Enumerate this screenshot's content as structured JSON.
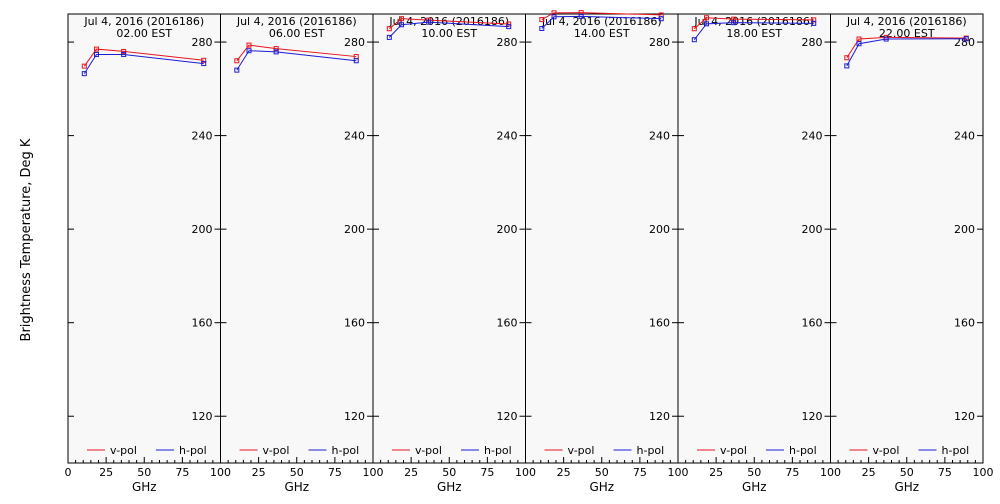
{
  "figure": {
    "ylabel": "Brightness Temperature, Deg K",
    "xlabel": "GHz",
    "legend": {
      "v_label": "v-pol",
      "h_label": "h-pol"
    },
    "colors": {
      "v": "#e8141e",
      "h": "#1c1cd8",
      "background": "#f8f8f8",
      "axes": "#000000"
    }
  },
  "chart_data": [
    {
      "type": "line",
      "title": "Jul  4, 2016 (2016186)",
      "subtitle": "02.00 EST",
      "x": [
        10.7,
        18.7,
        36.5,
        89.0
      ],
      "ylim": [
        100,
        292
      ],
      "xlim": [
        0,
        100
      ],
      "xticks": [
        0,
        25,
        50,
        75,
        100
      ],
      "yticks": [
        120,
        160,
        200,
        240,
        280
      ],
      "series": [
        {
          "name": "v-pol",
          "values": [
            269.7,
            277.0,
            276.0,
            272.2
          ]
        },
        {
          "name": "h-pol",
          "values": [
            266.5,
            274.7,
            274.7,
            270.8
          ]
        }
      ],
      "legend_position": "bottom"
    },
    {
      "type": "line",
      "title": "Jul  4, 2016 (2016186)",
      "subtitle": "06.00 EST",
      "x": [
        10.7,
        18.7,
        36.5,
        89.0
      ],
      "ylim": [
        100,
        292
      ],
      "xlim": [
        0,
        100
      ],
      "xticks": [
        0,
        25,
        50,
        75,
        100
      ],
      "yticks": [
        120,
        160,
        200,
        240,
        280
      ],
      "series": [
        {
          "name": "v-pol",
          "values": [
            272.0,
            278.7,
            277.2,
            273.8
          ]
        },
        {
          "name": "h-pol",
          "values": [
            268.0,
            276.3,
            275.8,
            272.0
          ]
        }
      ],
      "legend_position": "bottom"
    },
    {
      "type": "line",
      "title": "Jul  4, 2016 (2016186)",
      "subtitle": "10.00 EST",
      "x": [
        10.7,
        18.7,
        36.5,
        89.0
      ],
      "ylim": [
        100,
        292
      ],
      "xlim": [
        0,
        100
      ],
      "xticks": [
        0,
        25,
        50,
        75,
        100
      ],
      "yticks": [
        120,
        160,
        200,
        240,
        280
      ],
      "series": [
        {
          "name": "v-pol",
          "values": [
            285.7,
            290.0,
            289.4,
            287.7
          ]
        },
        {
          "name": "h-pol",
          "values": [
            282.0,
            287.4,
            288.5,
            286.6
          ]
        }
      ],
      "legend_position": "bottom"
    },
    {
      "type": "line",
      "title": "Jul  4, 2016 (2016186)",
      "subtitle": "14.00 EST",
      "x": [
        10.7,
        18.7,
        36.5,
        89.0
      ],
      "ylim": [
        100,
        292
      ],
      "xlim": [
        0,
        100
      ],
      "xticks": [
        0,
        25,
        50,
        75,
        100
      ],
      "yticks": [
        120,
        160,
        200,
        240,
        280
      ],
      "series": [
        {
          "name": "v-pol",
          "values": [
            289.6,
            292.5,
            292.6,
            291.6
          ]
        },
        {
          "name": "h-pol",
          "values": [
            285.8,
            290.8,
            291.0,
            290.0
          ]
        }
      ],
      "legend_position": "bottom"
    },
    {
      "type": "line",
      "title": "Jul  4, 2016 (2016186)",
      "subtitle": "18.00 EST",
      "x": [
        10.7,
        18.7,
        36.5,
        89.0
      ],
      "ylim": [
        100,
        292
      ],
      "xlim": [
        0,
        100
      ],
      "xticks": [
        0,
        25,
        50,
        75,
        100
      ],
      "yticks": [
        120,
        160,
        200,
        240,
        280
      ],
      "series": [
        {
          "name": "v-pol",
          "values": [
            285.7,
            290.4,
            289.8,
            289.5
          ]
        },
        {
          "name": "h-pol",
          "values": [
            281.0,
            287.8,
            288.3,
            288.0
          ]
        }
      ],
      "legend_position": "bottom"
    },
    {
      "type": "line",
      "title": "Jul  4, 2016 (2016186)",
      "subtitle": "22.00 EST",
      "x": [
        10.7,
        18.7,
        36.5,
        89.0
      ],
      "ylim": [
        100,
        292
      ],
      "xlim": [
        0,
        100
      ],
      "xticks": [
        0,
        25,
        50,
        75,
        100
      ],
      "yticks": [
        120,
        160,
        200,
        240,
        280
      ],
      "series": [
        {
          "name": "v-pol",
          "values": [
            273.3,
            281.3,
            282.0,
            281.7
          ]
        },
        {
          "name": "h-pol",
          "values": [
            269.8,
            279.3,
            281.3,
            281.4
          ]
        }
      ],
      "legend_position": "bottom"
    }
  ]
}
